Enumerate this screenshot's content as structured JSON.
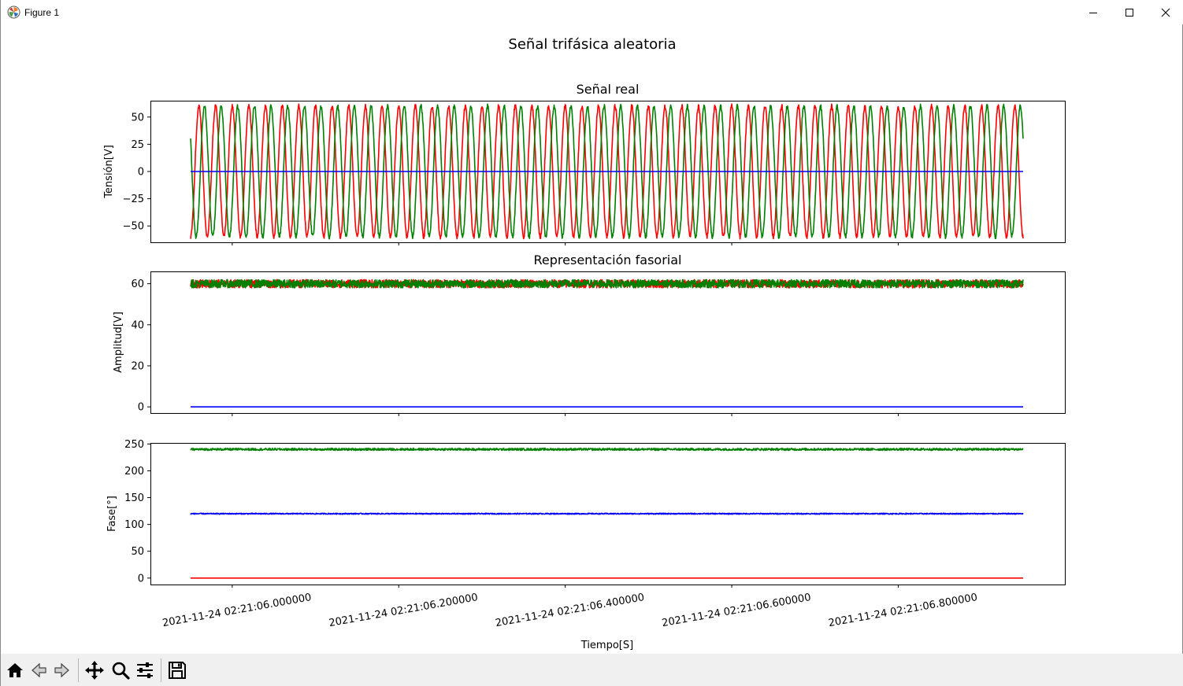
{
  "window": {
    "title": "Figure 1",
    "icon": "matplotlib-logo-icon",
    "controls": [
      "minimize-icon",
      "maximize-icon",
      "close-icon"
    ]
  },
  "figure": {
    "suptitle": "Señal trifásica aleatoria",
    "xlabel": "Tiempo[S]"
  },
  "toolbar": {
    "buttons": [
      "home-icon",
      "back-arrow-icon",
      "forward-arrow-icon",
      "pan-icon",
      "zoom-icon",
      "configure-subplots-icon",
      "save-icon"
    ]
  },
  "colors": {
    "red_series": "#ff0000",
    "green_series": "#008000",
    "blue_series": "#0000ff",
    "toolbar_bg": "#f0f0f0"
  },
  "chart_data": [
    {
      "type": "line",
      "title": "Señal real",
      "ylabel": "Tensión[V]",
      "ylim": [
        -65,
        65
      ],
      "yticks": [
        -50,
        -25,
        0,
        25,
        50
      ],
      "yticklabels": [
        "−50",
        "−25",
        "0",
        "25",
        "50"
      ],
      "x_range": [
        "2021-11-24 02:21:05.950000",
        "2021-11-24 02:21:06.950000"
      ],
      "xticks_visible": false,
      "signal": "sinusoidal, about 50 cycles over the interval",
      "series": [
        {
          "color": "#ff0000",
          "amplitude": 60,
          "phase_deg": 0,
          "noise": 2
        },
        {
          "color": "#008000",
          "amplitude": 60,
          "phase_deg": 240,
          "noise": 2
        },
        {
          "color": "#0000ff",
          "amplitude": 0,
          "phase_deg": 120,
          "noise": 0
        }
      ],
      "grid": false
    },
    {
      "type": "line",
      "title": "Representación fasorial",
      "ylabel": "Amplitud[V]",
      "ylim": [
        -3,
        66
      ],
      "yticks": [
        0,
        20,
        40,
        60
      ],
      "yticklabels": [
        "0",
        "20",
        "40",
        "60"
      ],
      "x_range": [
        "2021-11-24 02:21:05.950000",
        "2021-11-24 02:21:06.950000"
      ],
      "xticks_visible": false,
      "series": [
        {
          "color": "#ff0000",
          "value": 60,
          "noise": 2
        },
        {
          "color": "#008000",
          "value": 60,
          "noise": 2
        },
        {
          "color": "#0000ff",
          "value": 0,
          "noise": 0
        }
      ],
      "grid": false
    },
    {
      "type": "line",
      "title": "",
      "ylabel": "Fase[°]",
      "ylim": [
        -12,
        252
      ],
      "yticks": [
        0,
        50,
        100,
        150,
        200,
        250
      ],
      "yticklabels": [
        "0",
        "50",
        "100",
        "150",
        "200",
        "250"
      ],
      "x_range": [
        "2021-11-24 02:21:05.950000",
        "2021-11-24 02:21:06.950000"
      ],
      "xticks_visible": true,
      "xticks": [
        "2021-11-24 02:21:06.000000",
        "2021-11-24 02:21:06.200000",
        "2021-11-24 02:21:06.400000",
        "2021-11-24 02:21:06.600000",
        "2021-11-24 02:21:06.800000"
      ],
      "xticklabels": [
        "2021-11-24 02:21:06.000000",
        "2021-11-24 02:21:06.200000",
        "2021-11-24 02:21:06.400000",
        "2021-11-24 02:21:06.600000",
        "2021-11-24 02:21:06.800000"
      ],
      "series": [
        {
          "color": "#008000",
          "value": 240,
          "noise": 2
        },
        {
          "color": "#0000ff",
          "value": 120,
          "noise": 1
        },
        {
          "color": "#ff0000",
          "value": 0,
          "noise": 0
        }
      ],
      "grid": false
    }
  ]
}
